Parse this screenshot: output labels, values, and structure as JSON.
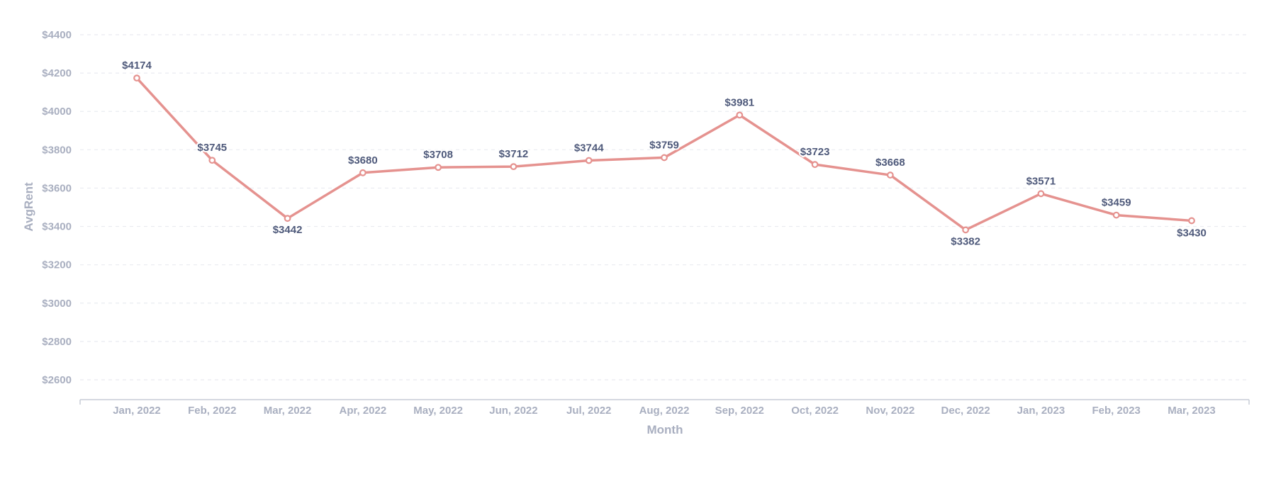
{
  "chart_data": {
    "type": "line",
    "title": "",
    "xlabel": "Month",
    "ylabel": "AvgRent",
    "categories": [
      "Jan, 2022",
      "Feb, 2022",
      "Mar, 2022",
      "Apr, 2022",
      "May, 2022",
      "Jun, 2022",
      "Jul, 2022",
      "Aug, 2022",
      "Sep, 2022",
      "Oct, 2022",
      "Nov, 2022",
      "Dec, 2022",
      "Jan, 2023",
      "Feb, 2023",
      "Mar, 2023"
    ],
    "series": [
      {
        "name": "AvgRent",
        "values": [
          4174,
          3745,
          3442,
          3680,
          3708,
          3712,
          3744,
          3759,
          3981,
          3723,
          3668,
          3382,
          3571,
          3459,
          3430
        ],
        "labels": [
          "$4174",
          "$3745",
          "$3442",
          "$3680",
          "$3708",
          "$3712",
          "$3744",
          "$3759",
          "$3981",
          "$3723",
          "$3668",
          "$3382",
          "$3571",
          "$3459",
          "$3430"
        ],
        "color": "#e5928f"
      }
    ],
    "y_ticks": [
      2600,
      2800,
      3000,
      3200,
      3400,
      3600,
      3800,
      4000,
      4200,
      4400
    ],
    "y_tick_labels": [
      "$2600",
      "$2800",
      "$3000",
      "$3200",
      "$3400",
      "$3600",
      "$3800",
      "$4000",
      "$4200",
      "$4400"
    ],
    "ylim": [
      2500,
      4400
    ],
    "grid": true,
    "legend": "none"
  },
  "colors": {
    "line": "#e5928f",
    "grid": "#e9ebf0",
    "axis": "#c7ccd6",
    "tick_text": "#a9afc0",
    "label_text": "#4f5a7b"
  }
}
